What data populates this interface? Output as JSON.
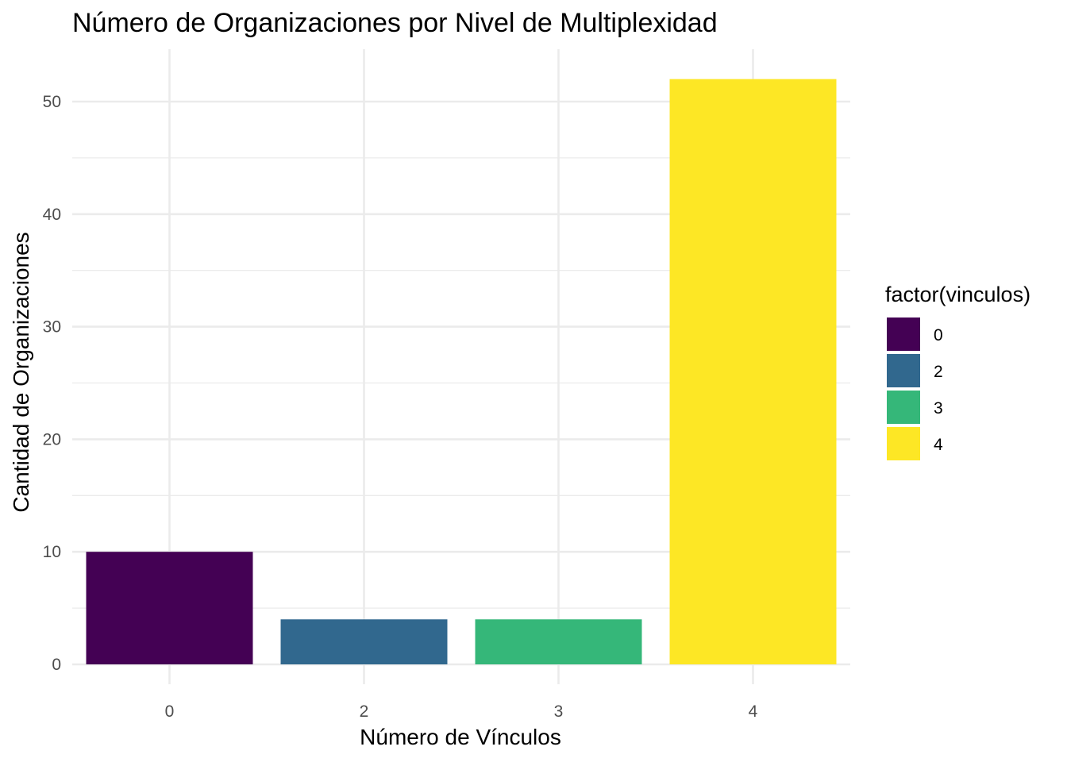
{
  "chart_data": {
    "type": "bar",
    "title": "Número de Organizaciones por Nivel de Multiplexidad",
    "xlabel": "Número de Vínculos",
    "ylabel": "Cantidad de Organizaciones",
    "categories": [
      "0",
      "2",
      "3",
      "4"
    ],
    "values": [
      10,
      4,
      4,
      52
    ],
    "colors": [
      "#440154",
      "#31688E",
      "#35B779",
      "#FDE725"
    ],
    "ylim": [
      0,
      54.6
    ],
    "yticks": [
      0,
      10,
      20,
      30,
      40,
      50
    ],
    "grid": true,
    "legend": {
      "title": "factor(vinculos)",
      "placement": "right",
      "entries": [
        "0",
        "2",
        "3",
        "4"
      ]
    }
  }
}
